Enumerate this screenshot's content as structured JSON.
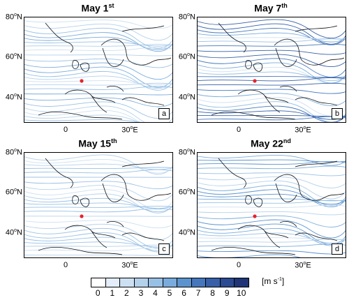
{
  "panels": [
    {
      "title": "May 1",
      "title_sup": "st",
      "tag": "a",
      "intensity": 0.35
    },
    {
      "title": "May 7",
      "title_sup": "th",
      "tag": "b",
      "intensity": 0.75
    },
    {
      "title": "May 15",
      "title_sup": "th",
      "tag": "c",
      "intensity": 0.3
    },
    {
      "title": "May 22",
      "title_sup": "nd",
      "tag": "d",
      "intensity": 0.5
    }
  ],
  "lat_labels": [
    "80",
    "60",
    "40"
  ],
  "lat_suffix": "N",
  "lon_labels": [
    "0",
    "30"
  ],
  "lon_suffix": "E",
  "degree": "o",
  "colorbar": {
    "ticks": [
      "0",
      "1",
      "2",
      "3",
      "4",
      "5",
      "6",
      "7",
      "8",
      "9",
      "10"
    ],
    "colors": [
      "#ffffff",
      "#e3eefa",
      "#cde0f3",
      "#b4d1ec",
      "#98c0e5",
      "#79abdc",
      "#5b93cf",
      "#4577bd",
      "#3760a8",
      "#2a4a91",
      "#1f3577"
    ],
    "unit_main": "[m s",
    "unit_sup": "-1",
    "unit_close": "]"
  },
  "marker_color": "#e8232a"
}
